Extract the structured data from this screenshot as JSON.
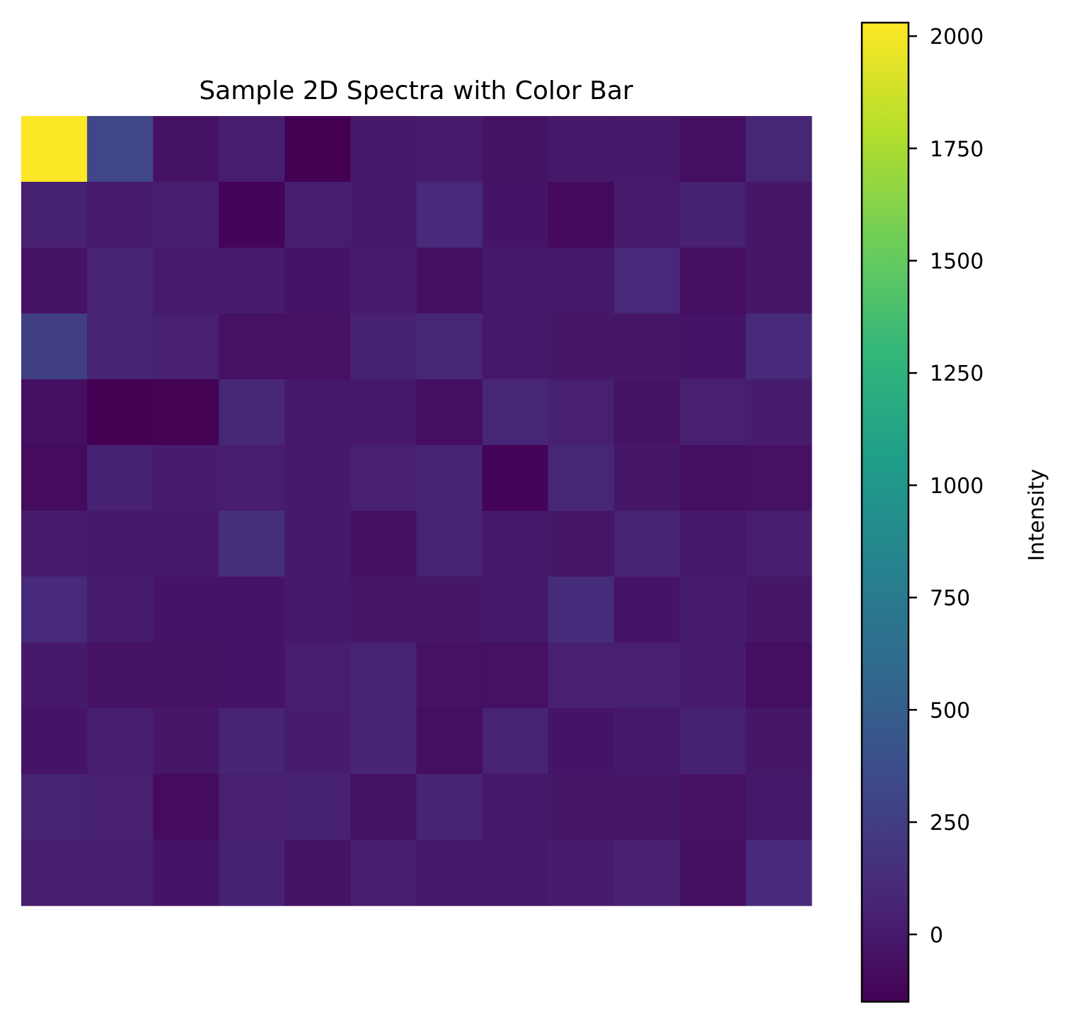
{
  "chart_data": {
    "type": "heatmap",
    "title": "Sample 2D Spectra with Color Bar",
    "xlabel": "",
    "ylabel": "",
    "colorbar": {
      "label": "Intensity",
      "range": [
        -150,
        2030
      ],
      "ticks": [
        0,
        250,
        500,
        750,
        1000,
        1250,
        1500,
        1750,
        2000
      ],
      "tick_labels": [
        "0",
        "250",
        "500",
        "750",
        "1000",
        "1250",
        "1500",
        "1750",
        "2000"
      ],
      "colormap": "viridis"
    },
    "axes_visible": false,
    "grid": false,
    "rows": 12,
    "cols": 12,
    "values": [
      [
        2020,
        320,
        -40,
        30,
        -150,
        0,
        10,
        -40,
        0,
        0,
        -60,
        80
      ],
      [
        50,
        10,
        30,
        -130,
        30,
        0,
        110,
        -30,
        -100,
        20,
        50,
        -20
      ],
      [
        -40,
        70,
        10,
        20,
        -30,
        20,
        -60,
        -10,
        -10,
        90,
        -70,
        -20
      ],
      [
        260,
        60,
        40,
        -50,
        -50,
        50,
        80,
        -10,
        -20,
        -20,
        -30,
        110
      ],
      [
        -60,
        -150,
        -140,
        80,
        -10,
        0,
        -70,
        80,
        40,
        -40,
        40,
        20
      ],
      [
        -80,
        50,
        20,
        30,
        0,
        40,
        70,
        -130,
        80,
        -20,
        -60,
        -50
      ],
      [
        20,
        0,
        0,
        140,
        0,
        -70,
        60,
        -10,
        -20,
        60,
        0,
        30
      ],
      [
        110,
        10,
        -30,
        -30,
        0,
        -20,
        -20,
        -10,
        130,
        -30,
        20,
        -20
      ],
      [
        0,
        -40,
        -40,
        -30,
        30,
        60,
        -50,
        -50,
        40,
        40,
        20,
        -60
      ],
      [
        -30,
        30,
        -20,
        70,
        20,
        70,
        -70,
        60,
        -30,
        -10,
        50,
        -20
      ],
      [
        60,
        40,
        -80,
        40,
        50,
        -40,
        70,
        -10,
        -20,
        -20,
        -50,
        -10
      ],
      [
        30,
        30,
        -30,
        50,
        -40,
        30,
        0,
        0,
        20,
        40,
        -60,
        100
      ]
    ]
  },
  "colors": {
    "viridis": [
      "#440154",
      "#482878",
      "#3e4989",
      "#31688e",
      "#26828e",
      "#1f9e89",
      "#35b779",
      "#6ece58",
      "#b5de2b",
      "#fde725"
    ]
  }
}
